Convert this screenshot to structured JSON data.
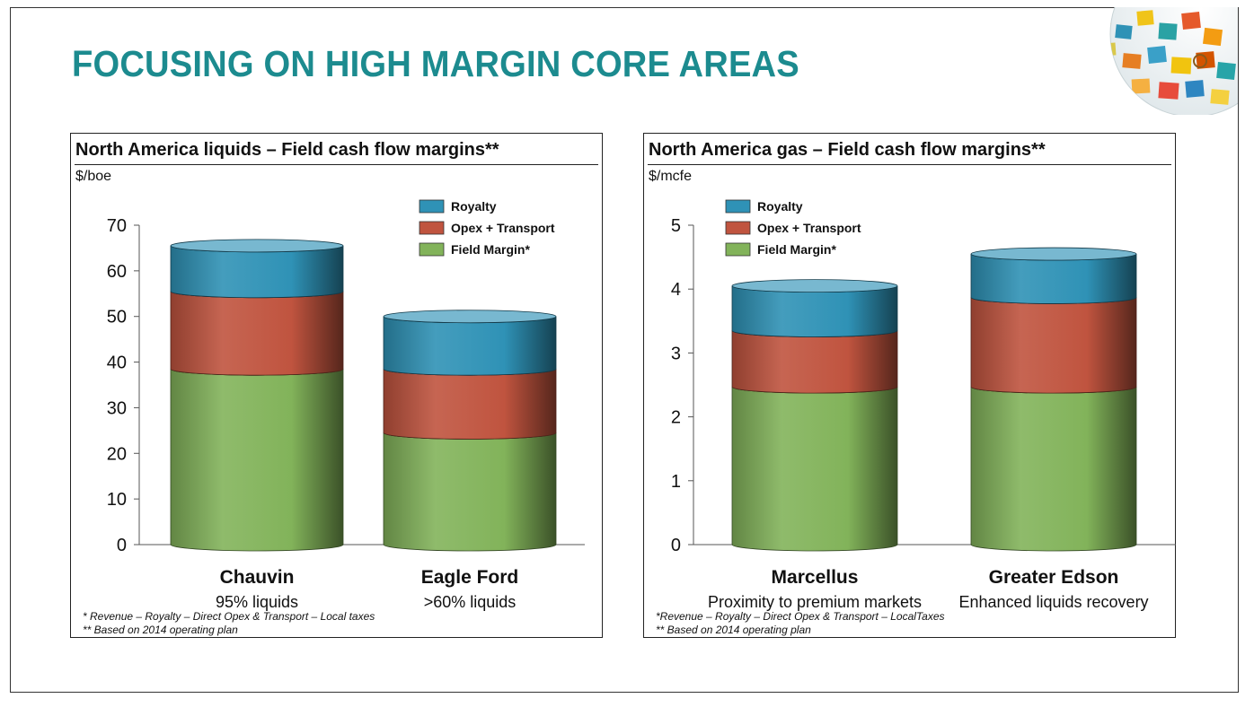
{
  "slide": {
    "title": "FOCUSING ON HIGH MARGIN CORE AREAS"
  },
  "colors": {
    "title": "#1c8b8f",
    "royalty": "#2f92b6",
    "opex": "#c0543f",
    "field_margin": "#82b35a"
  },
  "left_panel": {
    "title": "North America liquids – Field cash flow margins**",
    "unit": "$/boe",
    "footnote1": "* Revenue – Royalty – Direct Opex & Transport – Local taxes",
    "footnote2": "** Based on 2014 operating plan"
  },
  "right_panel": {
    "title": "North America gas – Field cash flow margins**",
    "unit": "$/mcfe",
    "footnote1": "*Revenue – Royalty – Direct Opex & Transport – LocalTaxes",
    "footnote2": "** Based on 2014 operating plan"
  },
  "chart_data": [
    {
      "type": "bar",
      "stacked": true,
      "title": "North America liquids – Field cash flow margins**",
      "ylabel": "$/boe",
      "ylim": [
        0,
        70
      ],
      "yticks": [
        0,
        10,
        20,
        30,
        40,
        50,
        60,
        70
      ],
      "categories": [
        "Chauvin",
        "Eagle Ford"
      ],
      "category_sublabels": [
        "95% liquids",
        ">60% liquids"
      ],
      "series": [
        {
          "name": "Field Margin*",
          "values": [
            38.5,
            24.5
          ]
        },
        {
          "name": "Opex + Transport",
          "values": [
            17,
            14
          ]
        },
        {
          "name": "Royalty",
          "values": [
            10,
            11.5
          ]
        }
      ],
      "legend_order": [
        "Royalty",
        "Opex + Transport",
        "Field Margin*"
      ],
      "legend": "top-right",
      "grid": false
    },
    {
      "type": "bar",
      "stacked": true,
      "title": "North America gas – Field cash flow margins**",
      "ylabel": "$/mcfe",
      "ylim": [
        0,
        5
      ],
      "yticks": [
        0,
        1,
        2,
        3,
        4,
        5
      ],
      "categories": [
        "Marcellus",
        "Greater Edson"
      ],
      "category_sublabels": [
        "Proximity to premium markets",
        "Enhanced liquids recovery"
      ],
      "series": [
        {
          "name": "Field Margin*",
          "values": [
            2.47,
            2.47
          ]
        },
        {
          "name": "Opex + Transport",
          "values": [
            0.88,
            1.4
          ]
        },
        {
          "name": "Royalty",
          "values": [
            0.7,
            0.68
          ]
        }
      ],
      "legend_order": [
        "Royalty",
        "Opex + Transport",
        "Field Margin*"
      ],
      "legend": "top-left",
      "grid": false
    }
  ]
}
